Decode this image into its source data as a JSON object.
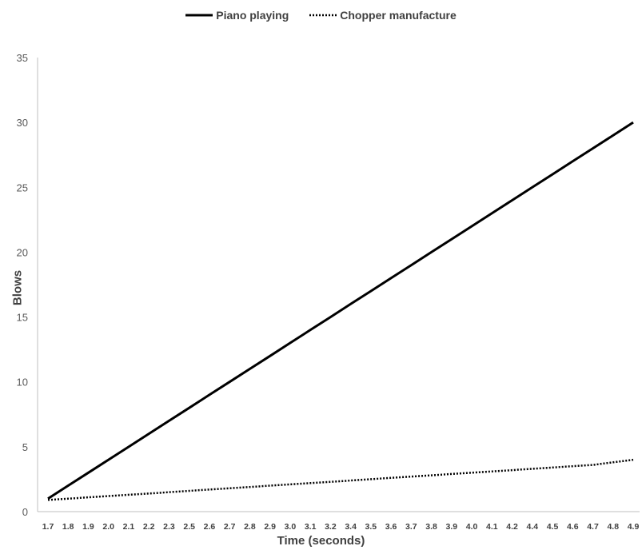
{
  "chart_data": {
    "type": "line",
    "title": "",
    "xlabel": "Time (seconds)",
    "ylabel": "Blows",
    "ylim": [
      0,
      35
    ],
    "yticks": [
      0,
      5,
      10,
      15,
      20,
      25,
      30,
      35
    ],
    "grid": false,
    "legend_position": "top-center",
    "categories": [
      "1.7",
      "1.8",
      "1.9",
      "2.0",
      "2.1",
      "2.2",
      "2.3",
      "2.5",
      "2.6",
      "2.7",
      "2.8",
      "2.9",
      "3.0",
      "3.1",
      "3.2",
      "3.4",
      "3.5",
      "3.6",
      "3.7",
      "3.8",
      "3.9",
      "4.0",
      "4.1",
      "4.2",
      "4.4",
      "4.5",
      "4.6",
      "4.7",
      "4.8",
      "4.9"
    ],
    "series": [
      {
        "name": "Piano playing",
        "style": "solid",
        "color": "#000000",
        "values": [
          1,
          2,
          3,
          4,
          5,
          6,
          7,
          8,
          9,
          10,
          11,
          12,
          13,
          14,
          15,
          16,
          17,
          18,
          19,
          20,
          21,
          22,
          23,
          24,
          25,
          26,
          27,
          28,
          29,
          30
        ]
      },
      {
        "name": "Chopper manufacture",
        "style": "dotted",
        "color": "#000000",
        "values": [
          0.9,
          1.0,
          1.1,
          1.2,
          1.3,
          1.4,
          1.5,
          1.6,
          1.7,
          1.8,
          1.9,
          2.0,
          2.1,
          2.2,
          2.3,
          2.4,
          2.5,
          2.6,
          2.7,
          2.8,
          2.9,
          3.0,
          3.1,
          3.2,
          3.3,
          3.4,
          3.5,
          3.6,
          3.8,
          4.0
        ]
      }
    ]
  }
}
